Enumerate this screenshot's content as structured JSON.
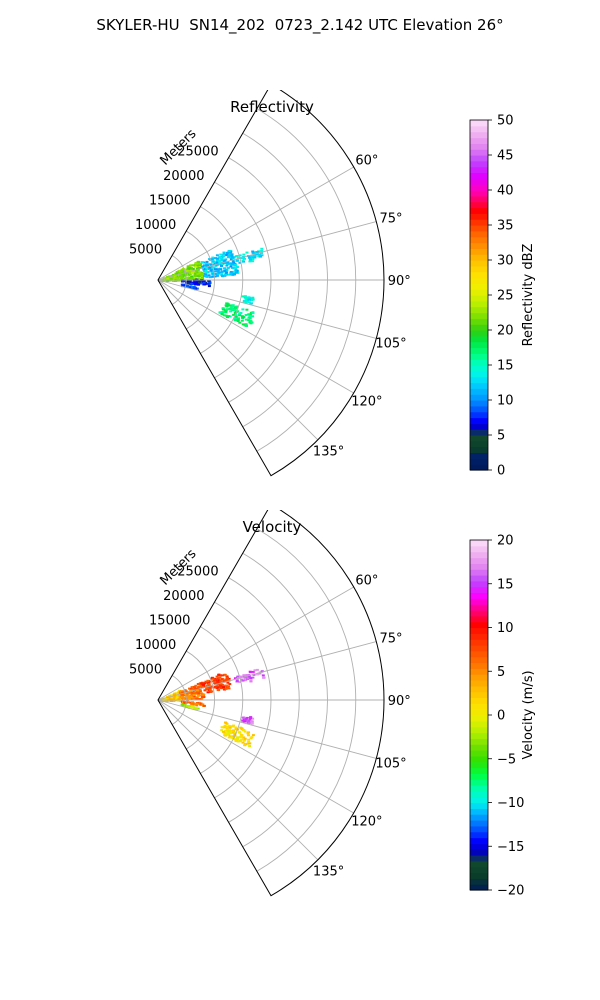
{
  "title": "SKYLER-HU  SN14_202  0723_2.142 UTC Elevation 26°",
  "chart_data": [
    {
      "type": "polar-sector",
      "title": "Reflectivity",
      "theta_unit": "degrees (clockwise from north)",
      "theta_range": [
        30,
        150
      ],
      "r_range": [
        0,
        40000
      ],
      "r_label": "Meters",
      "r_ticks": [
        5000,
        10000,
        15000,
        20000,
        25000
      ],
      "r_tick_labels": [
        "5000",
        "10000",
        "15000",
        "20000",
        "25000"
      ],
      "theta_ticks": [
        60,
        75,
        90,
        105,
        120,
        135
      ],
      "theta_tick_labels": [
        "60°",
        "75°",
        "90°",
        "105°",
        "120°",
        "135°"
      ],
      "grid": true,
      "colorbar": {
        "label": "Reflectivity dBZ",
        "range": [
          0,
          50
        ],
        "ticks": [
          0,
          5,
          10,
          15,
          20,
          25,
          30,
          35,
          40,
          45,
          50
        ],
        "tick_labels": [
          "0",
          "5",
          "10",
          "15",
          "20",
          "25",
          "30",
          "35",
          "40",
          "45",
          "50"
        ]
      },
      "regions": [
        {
          "theta": [
            63,
            90
          ],
          "r": [
            0,
            8000
          ],
          "value": 22
        },
        {
          "theta": [
            66,
            86
          ],
          "r": [
            8000,
            14000
          ],
          "value": 12
        },
        {
          "theta": [
            72,
            78
          ],
          "r": [
            14000,
            19000
          ],
          "value": 13
        },
        {
          "theta": [
            88,
            96
          ],
          "r": [
            4000,
            9000
          ],
          "value": 7
        },
        {
          "theta": [
            99,
            103
          ],
          "r": [
            4000,
            7000
          ],
          "value": 9
        },
        {
          "theta": [
            108,
            118
          ],
          "r": [
            12000,
            18000
          ],
          "value": 17
        },
        {
          "theta": [
            100,
            104
          ],
          "r": [
            15000,
            17000
          ],
          "value": 14
        }
      ]
    },
    {
      "type": "polar-sector",
      "title": "Velocity",
      "theta_unit": "degrees (clockwise from north)",
      "theta_range": [
        30,
        150
      ],
      "r_range": [
        0,
        40000
      ],
      "r_label": "Meters",
      "r_ticks": [
        5000,
        10000,
        15000,
        20000,
        25000
      ],
      "r_tick_labels": [
        "5000",
        "10000",
        "15000",
        "20000",
        "25000"
      ],
      "theta_ticks": [
        60,
        75,
        90,
        105,
        120,
        135
      ],
      "theta_tick_labels": [
        "60°",
        "75°",
        "90°",
        "105°",
        "120°",
        "135°"
      ],
      "grid": true,
      "colorbar": {
        "label": "Velocity (m/s)",
        "range": [
          -20,
          20
        ],
        "ticks": [
          -20,
          -15,
          -10,
          -5,
          0,
          5,
          10,
          15,
          20
        ],
        "tick_labels": [
          "−20",
          "−15",
          "−10",
          "−5",
          "0",
          "5",
          "10",
          "15",
          "20"
        ]
      },
      "regions": [
        {
          "theta": [
            63,
            90
          ],
          "r": [
            0,
            4000
          ],
          "value": 2
        },
        {
          "theta": [
            66,
            88
          ],
          "r": [
            4000,
            8000
          ],
          "value": 6
        },
        {
          "theta": [
            66,
            80
          ],
          "r": [
            8000,
            13000
          ],
          "value": 8
        },
        {
          "theta": [
            72,
            78
          ],
          "r": [
            14000,
            19000
          ],
          "value": 16
        },
        {
          "theta": [
            92,
            97
          ],
          "r": [
            4000,
            8000
          ],
          "value": 6
        },
        {
          "theta": [
            99,
            103
          ],
          "r": [
            4000,
            7000
          ],
          "value": -2
        },
        {
          "theta": [
            108,
            118
          ],
          "r": [
            12000,
            18000
          ],
          "value": 1
        },
        {
          "theta": [
            100,
            104
          ],
          "r": [
            15000,
            17000
          ],
          "value": 16
        }
      ]
    }
  ]
}
